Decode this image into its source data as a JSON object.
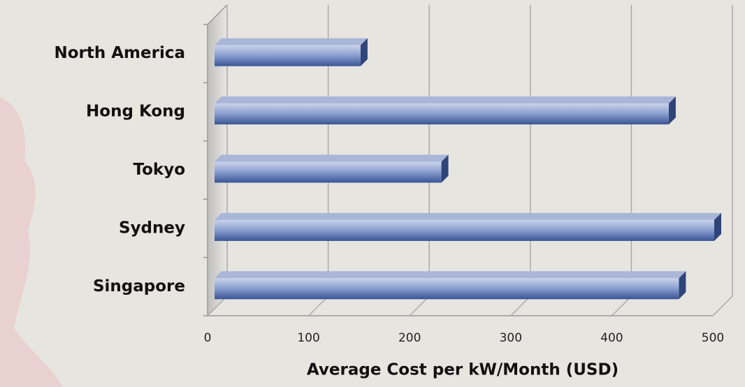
{
  "chart_data": {
    "type": "bar3d",
    "categories": [
      "North America",
      "Hong Kong",
      "Tokyo",
      "Sydney",
      "Singapore"
    ],
    "values": [
      150,
      455,
      230,
      500,
      465
    ],
    "color": "#5a74b4",
    "xlabel": "Average Cost per kW/Month  (USD)",
    "xlim": [
      0,
      500
    ],
    "xticks": [
      0,
      100,
      200,
      300,
      400,
      500
    ],
    "grid": true
  }
}
